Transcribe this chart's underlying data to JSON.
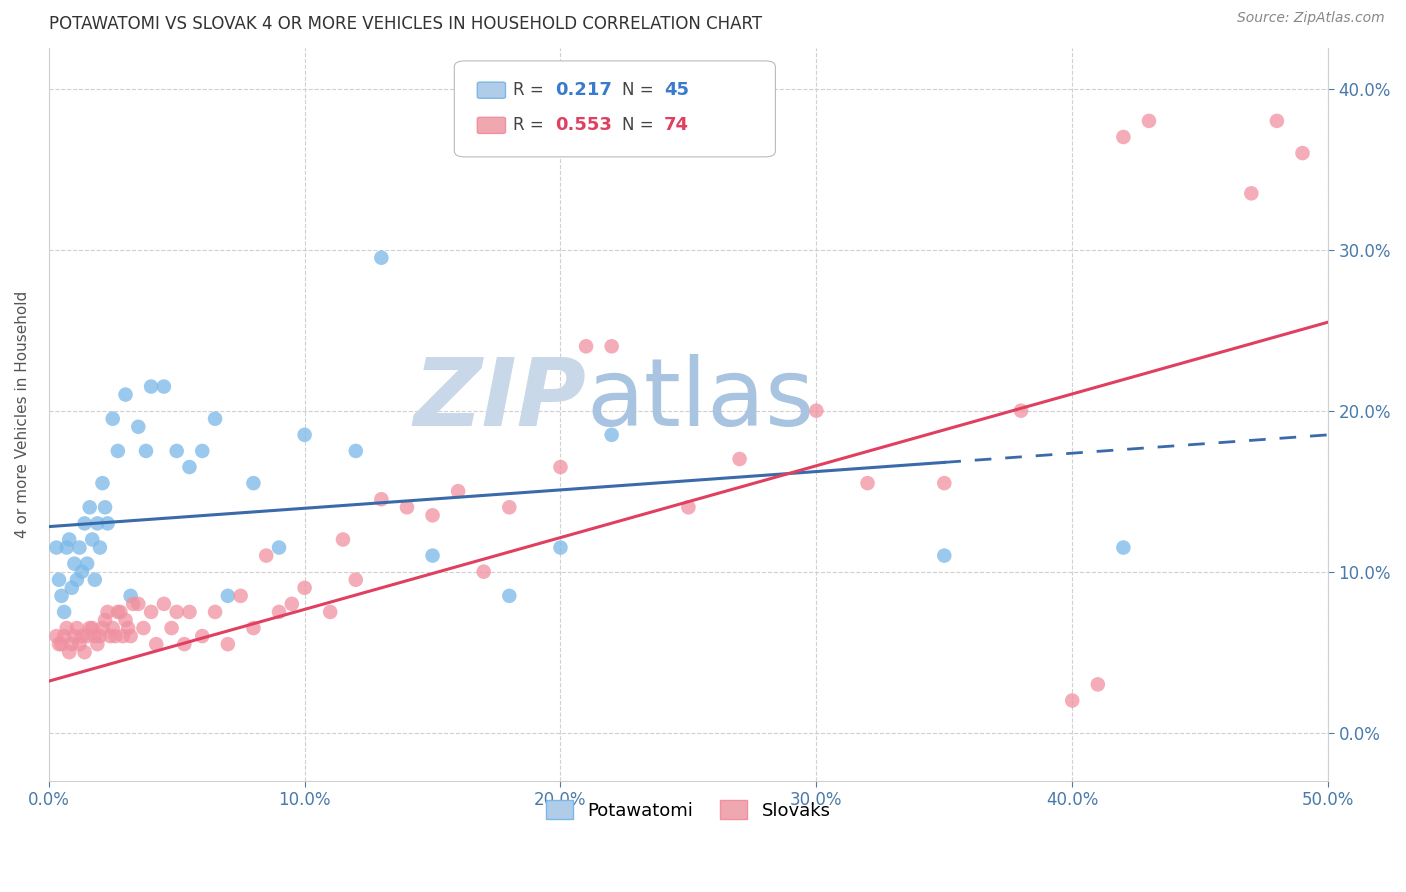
{
  "title": "POTAWATOMI VS SLOVAK 4 OR MORE VEHICLES IN HOUSEHOLD CORRELATION CHART",
  "source": "Source: ZipAtlas.com",
  "ylabel": "4 or more Vehicles in Household",
  "xlim": [
    0.0,
    0.5
  ],
  "ylim": [
    -0.03,
    0.425
  ],
  "xticks": [
    0.0,
    0.1,
    0.2,
    0.3,
    0.4,
    0.5
  ],
  "yticks": [
    0.0,
    0.1,
    0.2,
    0.3,
    0.4
  ],
  "xtick_labels": [
    "0.0%",
    "10.0%",
    "20.0%",
    "30.0%",
    "40.0%",
    "50.0%"
  ],
  "ytick_labels": [
    "0.0%",
    "10.0%",
    "20.0%",
    "30.0%",
    "40.0%"
  ],
  "background_color": "#ffffff",
  "grid_color": "#d0d0d0",
  "watermark": "ZIPatlas",
  "watermark_color": "#dce8f5",
  "blue_trend_start_y": 0.128,
  "blue_trend_end_y": 0.185,
  "blue_trend_solid_end_x": 0.35,
  "pink_trend_start_y": 0.032,
  "pink_trend_end_y": 0.255,
  "series": [
    {
      "name": "Potawatomi",
      "R": 0.217,
      "N": 45,
      "color": "#7ab8e8",
      "trend_color": "#3a6aaa",
      "trend_style": "solid_then_dashed",
      "x": [
        0.003,
        0.004,
        0.005,
        0.006,
        0.007,
        0.008,
        0.009,
        0.01,
        0.011,
        0.012,
        0.013,
        0.014,
        0.015,
        0.016,
        0.017,
        0.018,
        0.019,
        0.02,
        0.021,
        0.022,
        0.023,
        0.025,
        0.027,
        0.03,
        0.032,
        0.035,
        0.038,
        0.04,
        0.045,
        0.05,
        0.055,
        0.06,
        0.065,
        0.07,
        0.08,
        0.09,
        0.1,
        0.12,
        0.13,
        0.15,
        0.18,
        0.2,
        0.22,
        0.35,
        0.42
      ],
      "y": [
        0.115,
        0.095,
        0.085,
        0.075,
        0.115,
        0.12,
        0.09,
        0.105,
        0.095,
        0.115,
        0.1,
        0.13,
        0.105,
        0.14,
        0.12,
        0.095,
        0.13,
        0.115,
        0.155,
        0.14,
        0.13,
        0.195,
        0.175,
        0.21,
        0.085,
        0.19,
        0.175,
        0.215,
        0.215,
        0.175,
        0.165,
        0.175,
        0.195,
        0.085,
        0.155,
        0.115,
        0.185,
        0.175,
        0.295,
        0.11,
        0.085,
        0.115,
        0.185,
        0.11,
        0.115
      ]
    },
    {
      "name": "Slovaks",
      "R": 0.553,
      "N": 74,
      "color": "#f090a0",
      "trend_color": "#e04060",
      "trend_style": "solid",
      "x": [
        0.003,
        0.004,
        0.005,
        0.006,
        0.007,
        0.008,
        0.009,
        0.01,
        0.011,
        0.012,
        0.013,
        0.014,
        0.015,
        0.016,
        0.017,
        0.018,
        0.019,
        0.02,
        0.021,
        0.022,
        0.023,
        0.024,
        0.025,
        0.026,
        0.027,
        0.028,
        0.029,
        0.03,
        0.031,
        0.032,
        0.033,
        0.035,
        0.037,
        0.04,
        0.042,
        0.045,
        0.048,
        0.05,
        0.053,
        0.055,
        0.06,
        0.065,
        0.07,
        0.075,
        0.08,
        0.085,
        0.09,
        0.095,
        0.1,
        0.11,
        0.115,
        0.12,
        0.13,
        0.14,
        0.15,
        0.16,
        0.17,
        0.18,
        0.2,
        0.21,
        0.22,
        0.25,
        0.27,
        0.3,
        0.32,
        0.35,
        0.38,
        0.4,
        0.41,
        0.42,
        0.43,
        0.47,
        0.48,
        0.49
      ],
      "y": [
        0.06,
        0.055,
        0.055,
        0.06,
        0.065,
        0.05,
        0.055,
        0.06,
        0.065,
        0.055,
        0.06,
        0.05,
        0.06,
        0.065,
        0.065,
        0.06,
        0.055,
        0.06,
        0.065,
        0.07,
        0.075,
        0.06,
        0.065,
        0.06,
        0.075,
        0.075,
        0.06,
        0.07,
        0.065,
        0.06,
        0.08,
        0.08,
        0.065,
        0.075,
        0.055,
        0.08,
        0.065,
        0.075,
        0.055,
        0.075,
        0.06,
        0.075,
        0.055,
        0.085,
        0.065,
        0.11,
        0.075,
        0.08,
        0.09,
        0.075,
        0.12,
        0.095,
        0.145,
        0.14,
        0.135,
        0.15,
        0.1,
        0.14,
        0.165,
        0.24,
        0.24,
        0.14,
        0.17,
        0.2,
        0.155,
        0.155,
        0.2,
        0.02,
        0.03,
        0.37,
        0.38,
        0.335,
        0.38,
        0.36
      ]
    }
  ],
  "title_fontsize": 12,
  "label_fontsize": 11,
  "tick_fontsize": 12,
  "tick_color": "#4a7aaa",
  "legend_fontsize": 13
}
